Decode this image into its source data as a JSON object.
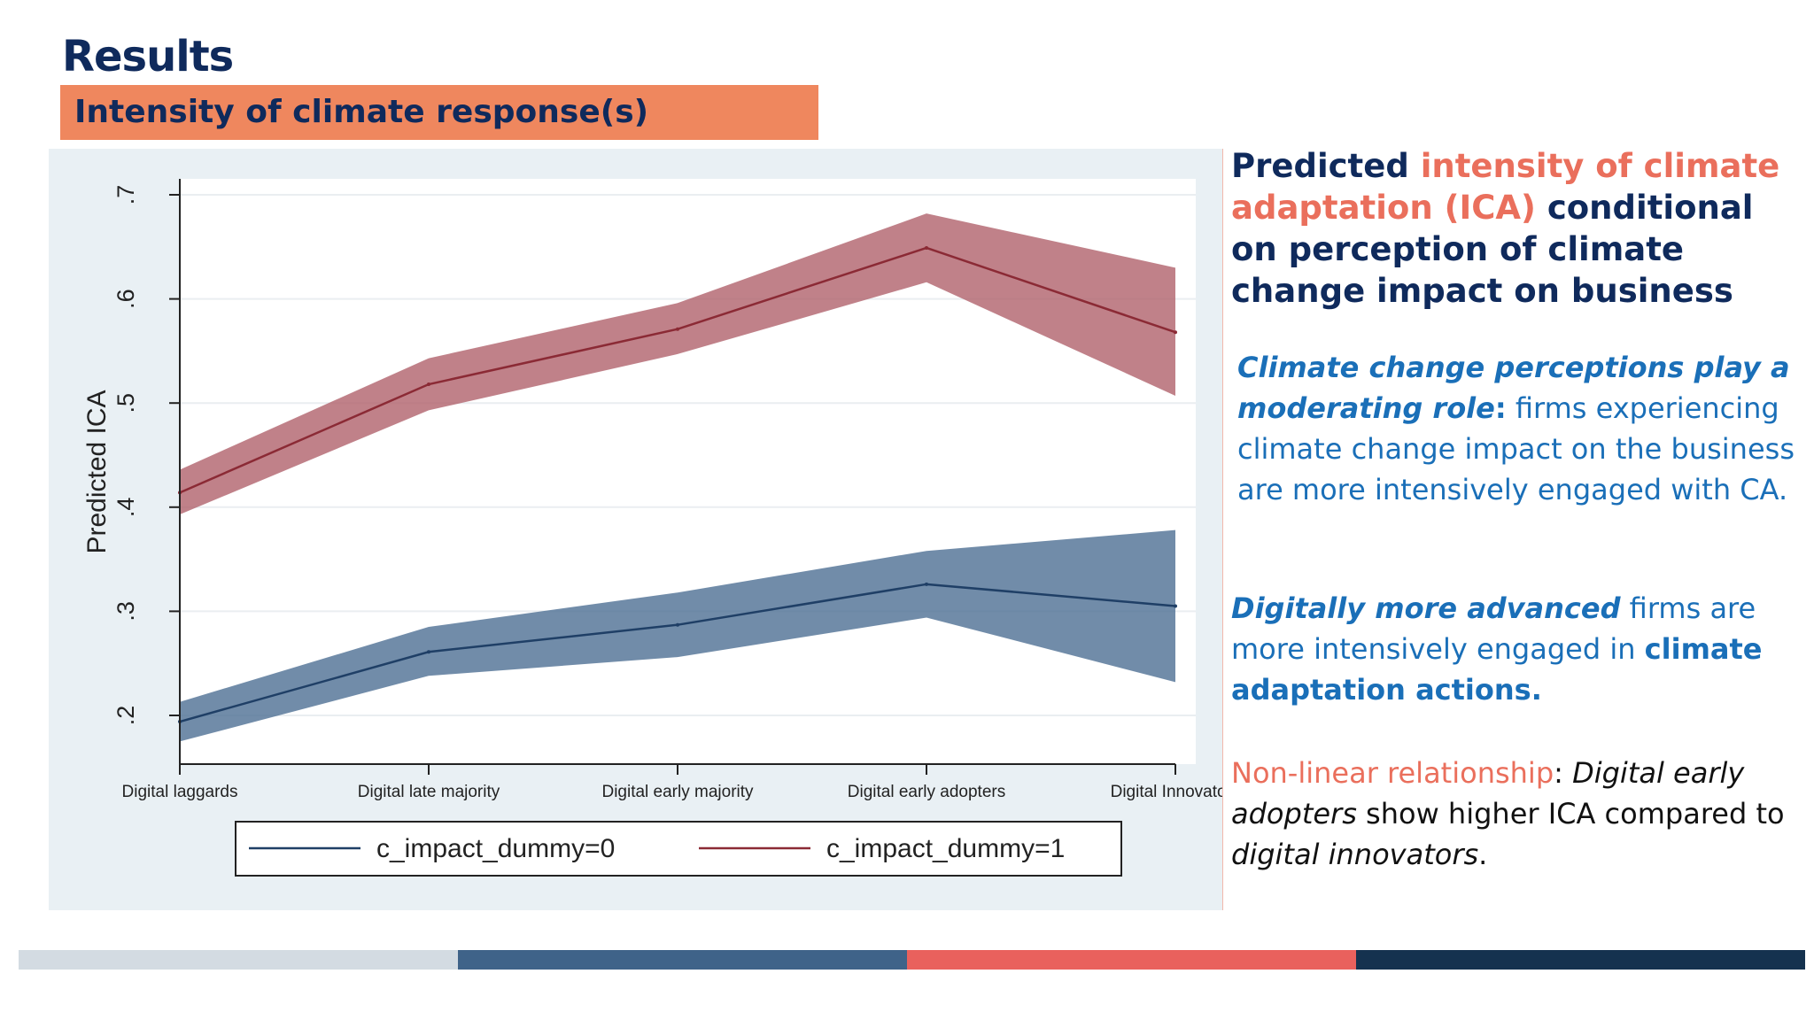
{
  "header": {
    "title": "Results",
    "subtitle": "Intensity of climate response(s)"
  },
  "side_text": {
    "heading": {
      "part1": "Predicted ",
      "highlight": "intensity of climate adaptation (ICA)",
      "part2": " conditional on perception of climate change impact on business"
    },
    "para1": {
      "emph": "Climate change perceptions play a moderating role",
      "colon": ":",
      "rest": " firms experiencing climate change impact on the business are more intensively engaged with CA."
    },
    "para2": {
      "emph": "Digitally more advanced",
      "mid": " firms are more intensively engaged in ",
      "bold": "climate adaptation actions."
    },
    "para3": {
      "lead": "Non-linear relationship",
      "colon": ": ",
      "i1": "Digital early adopters",
      "mid": " show higher ICA compared to ",
      "i2": "digital innovators",
      "end": "."
    }
  },
  "chart_data": {
    "type": "line",
    "ylabel": "Predicted ICA",
    "xlabel": "",
    "ylim": [
      0.2,
      0.7
    ],
    "yticks": [
      ".2",
      ".3",
      ".4",
      ".5",
      ".6",
      ".7"
    ],
    "ytick_values": [
      0.2,
      0.3,
      0.4,
      0.5,
      0.6,
      0.7
    ],
    "categories": [
      "Digital laggards",
      "Digital late majority",
      "Digital early majority",
      "Digital early adopters",
      "Digital Innovators"
    ],
    "grid": true,
    "legend_position": "bottom",
    "series": [
      {
        "name": "c_impact_dummy=0",
        "color": "#1f3f66",
        "band_color": "#4d6f93",
        "values": [
          0.194,
          0.261,
          0.287,
          0.326,
          0.305
        ],
        "lower": [
          0.175,
          0.238,
          0.256,
          0.294,
          0.232
        ],
        "upper": [
          0.213,
          0.285,
          0.318,
          0.358,
          0.378
        ]
      },
      {
        "name": "c_impact_dummy=1",
        "color": "#8b2a35",
        "band_color": "#b0626b",
        "values": [
          0.414,
          0.518,
          0.571,
          0.649,
          0.568
        ],
        "lower": [
          0.393,
          0.493,
          0.547,
          0.616,
          0.507
        ],
        "upper": [
          0.436,
          0.543,
          0.596,
          0.682,
          0.63
        ]
      }
    ]
  },
  "footer_colors": [
    "#d3dbe2",
    "#3f6389",
    "#e9615d",
    "#15324f"
  ]
}
